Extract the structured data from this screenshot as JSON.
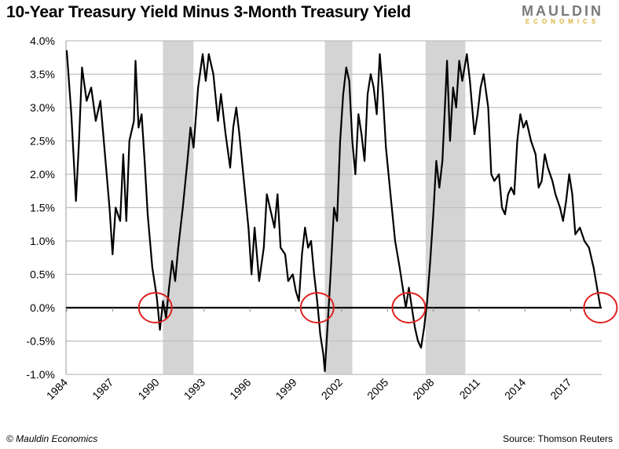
{
  "header": {
    "title": "10-Year Treasury Yield Minus 3-Month Treasury Yield",
    "logo_top": "MAULDIN",
    "logo_bottom": "ECONOMICS"
  },
  "footer": {
    "copyright": "© Mauldin Economics",
    "source": "Source: Thomson Reuters"
  },
  "colors": {
    "line": "#000000",
    "recession": "#d4d4d4",
    "circle": "#e02020",
    "grid": "#bfbfbf",
    "logo_gray": "#7a7a7a",
    "logo_gold": "#d9b23a"
  },
  "chart_data": {
    "type": "line",
    "title": "10-Year Treasury Yield Minus 3-Month Treasury Yield",
    "xlabel": "",
    "ylabel": "",
    "ylim": [
      -1.0,
      4.0
    ],
    "xlim": [
      1984,
      2019.1
    ],
    "grid": true,
    "yticks": [
      "4.0%",
      "3.5%",
      "3.0%",
      "2.5%",
      "2.0%",
      "1.5%",
      "1.0%",
      "0.5%",
      "0.0%",
      "-0.5%",
      "-1.0%"
    ],
    "ytick_values": [
      4.0,
      3.5,
      3.0,
      2.5,
      2.0,
      1.5,
      1.0,
      0.5,
      0.0,
      -0.5,
      -1.0
    ],
    "xticks": [
      "1984",
      "1987",
      "1990",
      "1993",
      "1996",
      "1999",
      "2002",
      "2005",
      "2008",
      "2011",
      "2014",
      "2017"
    ],
    "recessions": [
      [
        1990.3,
        1992.3
      ],
      [
        2000.9,
        2002.7
      ],
      [
        2007.5,
        2010.1
      ]
    ],
    "inversion_markers": [
      1989.8,
      2000.4,
      2006.4,
      2018.95
    ],
    "series": [
      {
        "name": "10Y minus 3M spread (%)",
        "x": [
          1984.0,
          1984.3,
          1984.6,
          1984.8,
          1985.0,
          1985.3,
          1985.6,
          1985.9,
          1986.2,
          1986.5,
          1986.8,
          1987.0,
          1987.2,
          1987.5,
          1987.7,
          1987.9,
          1988.1,
          1988.4,
          1988.5,
          1988.7,
          1988.9,
          1989.1,
          1989.3,
          1989.6,
          1989.9,
          1990.1,
          1990.3,
          1990.5,
          1990.7,
          1990.9,
          1991.1,
          1991.3,
          1991.6,
          1991.9,
          1992.1,
          1992.3,
          1992.6,
          1992.9,
          1993.1,
          1993.3,
          1993.6,
          1993.9,
          1994.1,
          1994.4,
          1994.7,
          1994.9,
          1995.1,
          1995.3,
          1995.6,
          1995.9,
          1996.1,
          1996.3,
          1996.6,
          1996.9,
          1997.1,
          1997.3,
          1997.6,
          1997.8,
          1998.0,
          1998.3,
          1998.5,
          1998.8,
          1999.0,
          1999.2,
          1999.4,
          1999.6,
          1999.8,
          2000.0,
          2000.2,
          2000.4,
          2000.6,
          2000.8,
          2000.9,
          2001.1,
          2001.3,
          2001.5,
          2001.7,
          2001.9,
          2002.1,
          2002.3,
          2002.5,
          2002.7,
          2002.9,
          2003.1,
          2003.3,
          2003.5,
          2003.7,
          2003.9,
          2004.1,
          2004.3,
          2004.5,
          2004.7,
          2004.9,
          2005.2,
          2005.5,
          2005.8,
          2006.0,
          2006.2,
          2006.4,
          2006.6,
          2006.8,
          2007.0,
          2007.2,
          2007.4,
          2007.6,
          2007.8,
          2008.0,
          2008.2,
          2008.4,
          2008.6,
          2008.9,
          2009.1,
          2009.3,
          2009.5,
          2009.7,
          2009.9,
          2010.2,
          2010.4,
          2010.7,
          2010.9,
          2011.1,
          2011.3,
          2011.6,
          2011.8,
          2012.0,
          2012.3,
          2012.5,
          2012.7,
          2012.9,
          2013.1,
          2013.3,
          2013.5,
          2013.7,
          2013.9,
          2014.1,
          2014.4,
          2014.7,
          2014.9,
          2015.1,
          2015.3,
          2015.5,
          2015.8,
          2016.0,
          2016.3,
          2016.5,
          2016.7,
          2016.9,
          2017.1,
          2017.3,
          2017.6,
          2017.9,
          2018.2,
          2018.5,
          2018.8,
          2018.95
        ],
        "values": [
          3.85,
          2.9,
          1.6,
          2.5,
          3.6,
          3.1,
          3.3,
          2.8,
          3.1,
          2.3,
          1.5,
          0.8,
          1.5,
          1.3,
          2.3,
          1.3,
          2.5,
          2.8,
          3.7,
          2.7,
          2.9,
          2.2,
          1.4,
          0.6,
          0.15,
          -0.33,
          0.1,
          -0.15,
          0.3,
          0.7,
          0.4,
          0.9,
          1.5,
          2.2,
          2.7,
          2.4,
          3.3,
          3.8,
          3.4,
          3.8,
          3.5,
          2.8,
          3.2,
          2.6,
          2.1,
          2.7,
          3.0,
          2.6,
          1.9,
          1.2,
          0.5,
          1.2,
          0.4,
          0.9,
          1.7,
          1.5,
          1.2,
          1.7,
          0.9,
          0.8,
          0.4,
          0.5,
          0.25,
          0.1,
          0.8,
          1.2,
          0.9,
          1.0,
          0.5,
          0.1,
          -0.4,
          -0.7,
          -0.95,
          -0.2,
          0.6,
          1.5,
          1.3,
          2.5,
          3.2,
          3.6,
          3.4,
          2.5,
          2.0,
          2.9,
          2.6,
          2.2,
          3.2,
          3.5,
          3.3,
          2.9,
          3.8,
          3.2,
          2.4,
          1.7,
          1.0,
          0.6,
          0.3,
          0.0,
          0.3,
          0.0,
          -0.3,
          -0.5,
          -0.6,
          -0.3,
          0.1,
          0.7,
          1.4,
          2.2,
          1.8,
          2.2,
          3.7,
          2.5,
          3.3,
          3.0,
          3.7,
          3.4,
          3.8,
          3.4,
          2.6,
          2.9,
          3.3,
          3.5,
          3.0,
          2.0,
          1.9,
          2.0,
          1.5,
          1.4,
          1.7,
          1.8,
          1.7,
          2.5,
          2.9,
          2.7,
          2.8,
          2.5,
          2.3,
          1.8,
          1.9,
          2.3,
          2.1,
          1.9,
          1.7,
          1.5,
          1.3,
          1.6,
          2.0,
          1.7,
          1.1,
          1.2,
          1.0,
          0.9,
          0.6,
          0.2,
          0.0
        ]
      }
    ]
  }
}
